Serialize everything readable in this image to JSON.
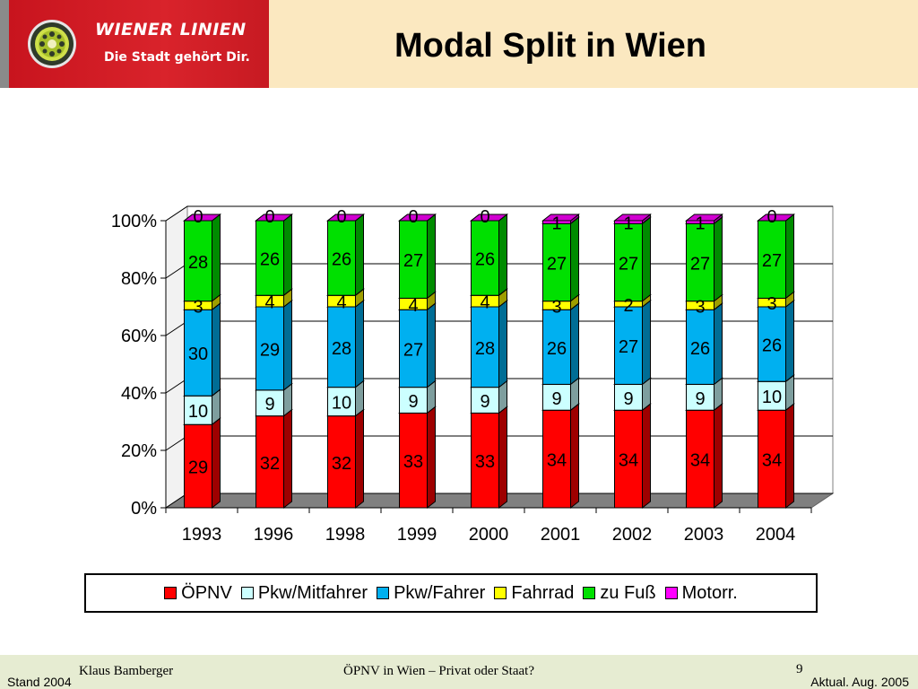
{
  "header": {
    "brand_name": "WIENER LINIEN",
    "brand_slogan": "Die Stadt gehört Dir.",
    "title": "Modal Split in Wien"
  },
  "colors": {
    "header_bg": "#fbe8c0",
    "brand_red": "#d9232b",
    "footer_bg": "#e6ecd2"
  },
  "footer": {
    "author": "Klaus Bamberger",
    "title": "ÖPNV in Wien – Privat oder Staat?",
    "page": "9",
    "stand": "Stand 2004",
    "aktual": "Aktual. Aug. 2005"
  },
  "chart_data": {
    "type": "bar",
    "stacked": true,
    "percent_stacked": true,
    "three_d": true,
    "title": "",
    "xlabel": "",
    "ylabel": "",
    "ylim": [
      0,
      100
    ],
    "y_ticks": [
      "0%",
      "20%",
      "40%",
      "60%",
      "80%",
      "100%"
    ],
    "categories": [
      "1993",
      "1996",
      "1998",
      "1999",
      "2000",
      "2001",
      "2002",
      "2003",
      "2004"
    ],
    "legend_position": "bottom",
    "series": [
      {
        "name": "ÖPNV",
        "color": "#ff0000",
        "values": [
          29,
          32,
          32,
          33,
          33,
          34,
          34,
          34,
          34
        ]
      },
      {
        "name": "Pkw/Mitfahrer",
        "color": "#ccffff",
        "values": [
          10,
          9,
          10,
          9,
          9,
          9,
          9,
          9,
          10
        ]
      },
      {
        "name": "Pkw/Fahrer",
        "color": "#00b0f0",
        "values": [
          30,
          29,
          28,
          27,
          28,
          26,
          27,
          26,
          26
        ]
      },
      {
        "name": "Fahrrad",
        "color": "#ffff00",
        "values": [
          3,
          4,
          4,
          4,
          4,
          3,
          2,
          3,
          3
        ]
      },
      {
        "name": "zu Fuß",
        "color": "#00e000",
        "values": [
          28,
          26,
          26,
          27,
          26,
          27,
          27,
          27,
          27
        ]
      },
      {
        "name": "Motorr.",
        "color": "#ff00ff",
        "values": [
          0,
          0,
          0,
          0,
          0,
          1,
          1,
          1,
          0
        ]
      }
    ]
  }
}
